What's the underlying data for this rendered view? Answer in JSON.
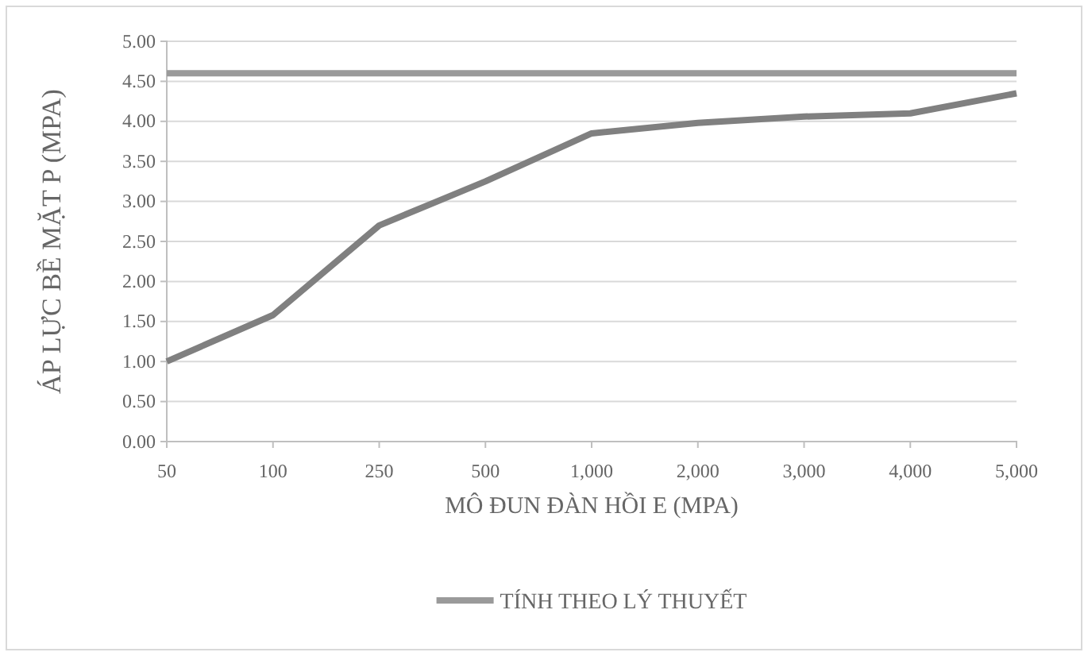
{
  "chart_data": {
    "type": "line",
    "xlabel": "MÔ ĐUN ĐÀN HỒI E (MPA)",
    "ylabel": "ÁP LỰC BỀ MẶT P (MPA)",
    "categories": [
      "50",
      "100",
      "250",
      "500",
      "1,000",
      "2,000",
      "3,000",
      "4,000",
      "5,000"
    ],
    "series": [
      {
        "color": "#808080",
        "values": [
          1.0,
          1.58,
          2.7,
          3.25,
          3.85,
          3.98,
          4.06,
          4.1,
          4.35
        ]
      },
      {
        "name": "TÍNH THEO LÝ THUYẾT",
        "color": "#9a9a9a",
        "values": [
          4.6,
          4.6,
          4.6,
          4.6,
          4.6,
          4.6,
          4.6,
          4.6,
          4.6
        ]
      }
    ],
    "ylim": [
      0,
      5
    ],
    "yticks": [
      {
        "value": 0,
        "label": "0.00"
      },
      {
        "value": 0.5,
        "label": "0.50"
      },
      {
        "value": 1,
        "label": "1.00"
      },
      {
        "value": 1.5,
        "label": "1.50"
      },
      {
        "value": 2,
        "label": "2.00"
      },
      {
        "value": 2.5,
        "label": "2.50"
      },
      {
        "value": 3,
        "label": "3.00"
      },
      {
        "value": 3.5,
        "label": "3.50"
      },
      {
        "value": 4,
        "label": "4.00"
      },
      {
        "value": 4.5,
        "label": "4.50"
      },
      {
        "value": 5,
        "label": "5.00"
      }
    ],
    "grid": "y",
    "legend": "bottom",
    "marker": "none",
    "line_style": "solid"
  }
}
